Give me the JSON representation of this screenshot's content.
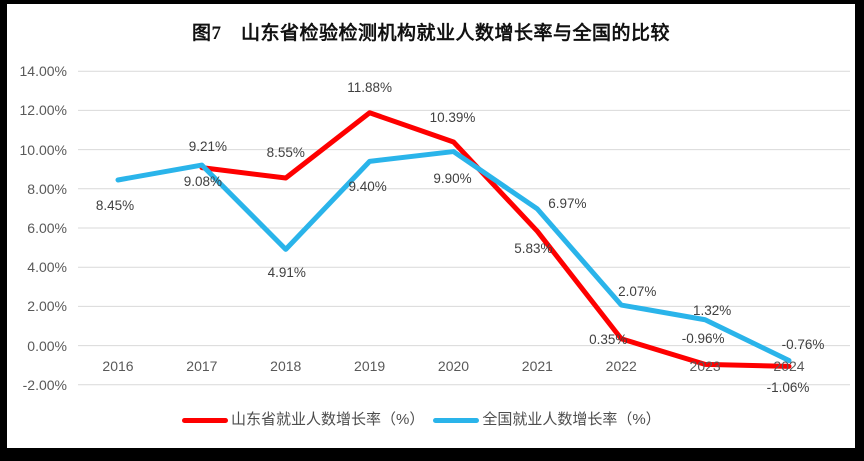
{
  "title": "图7　山东省检验检测机构就业人数增长率与全国的比较",
  "colors": {
    "shandong_line": "#FE0000",
    "national_line": "#2AB4EA",
    "gridline": "#D9D9D9",
    "frame": "#000000",
    "background": "#FFFFFF",
    "data_label_text": "#404040",
    "axis_text": "#595959"
  },
  "chart_data": {
    "type": "line",
    "categories": [
      "2016",
      "2017",
      "2018",
      "2019",
      "2020",
      "2021",
      "2022",
      "2023",
      "2024"
    ],
    "series": [
      {
        "name": "山东省就业人数增长率（%）",
        "color": "#FE0000",
        "values": [
          null,
          9.08,
          8.55,
          11.88,
          10.39,
          5.83,
          0.35,
          -0.96,
          -1.06
        ],
        "labels": [
          null,
          "9.08%",
          "8.55%",
          "11.88%",
          "10.39%",
          "5.83%",
          "0.35%",
          "-0.96%",
          "-1.06%"
        ]
      },
      {
        "name": "全国就业人数增长率（%）",
        "color": "#2AB4EA",
        "values": [
          8.45,
          9.21,
          4.91,
          9.4,
          9.9,
          6.97,
          2.07,
          1.32,
          -0.76
        ],
        "labels": [
          "8.45%",
          "9.21%",
          "4.91%",
          "9.40%",
          "9.90%",
          "6.97%",
          "2.07%",
          "1.32%",
          "-0.76%"
        ]
      }
    ],
    "y_ticks": [
      "14.00%",
      "12.00%",
      "10.00%",
      "8.00%",
      "6.00%",
      "4.00%",
      "2.00%",
      "0.00%",
      "-2.00%"
    ],
    "y_tick_values": [
      14,
      12,
      10,
      8,
      6,
      4,
      2,
      0,
      -2
    ],
    "ylim": [
      -2,
      14
    ],
    "xlabel": "",
    "ylabel": "",
    "grid": true,
    "legend_position": "bottom"
  }
}
